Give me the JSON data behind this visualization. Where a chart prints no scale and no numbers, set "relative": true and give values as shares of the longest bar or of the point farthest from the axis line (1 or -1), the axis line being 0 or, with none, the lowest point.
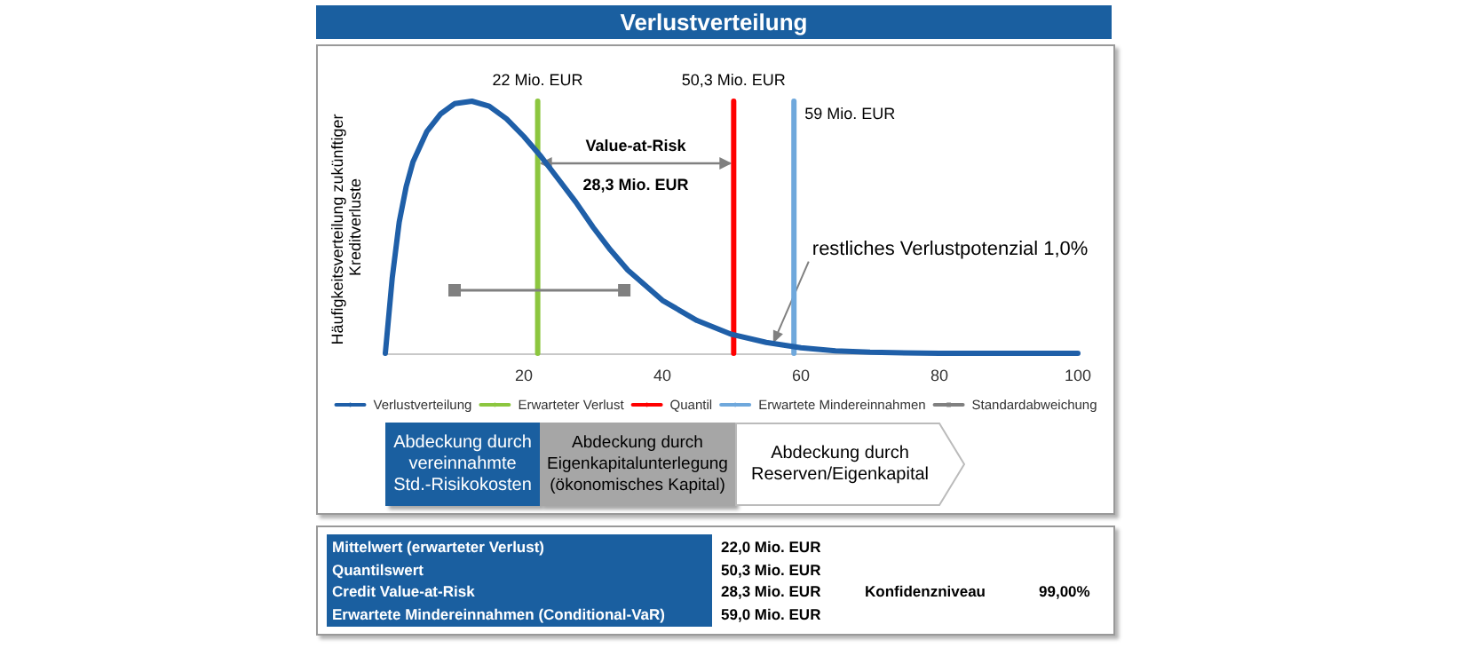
{
  "chart_data": [
    {
      "type": "line",
      "title": "Verlustverteilung",
      "ylabel": "Häufigkeitsverteilung zukünftiger Kreditverluste",
      "relative": true,
      "marker": "none",
      "grid": false,
      "legend": "bottom",
      "xlim": [
        0,
        100
      ],
      "xticks": [
        20,
        40,
        60,
        80,
        100
      ],
      "series": [
        {
          "name": "Verlustverteilung",
          "color": "#1f5fa8",
          "x": [
            0,
            1,
            2,
            3,
            4,
            6,
            8,
            10,
            12.5,
            15,
            17.5,
            20,
            22.5,
            25,
            27.5,
            30,
            32.5,
            35,
            40,
            45,
            50,
            55,
            60,
            65,
            70,
            80,
            90,
            100
          ],
          "values": [
            0,
            0.3,
            0.52,
            0.66,
            0.76,
            0.88,
            0.95,
            0.99,
            1,
            0.98,
            0.93,
            0.86,
            0.78,
            0.69,
            0.6,
            0.5,
            0.41,
            0.33,
            0.21,
            0.13,
            0.075,
            0.043,
            0.022,
            0.01,
            0.004,
            0,
            0,
            0
          ]
        },
        {
          "name": "Erwarteter Verlust",
          "color": "#8cc63f",
          "x": [
            22,
            22
          ],
          "values": [
            0,
            1
          ]
        },
        {
          "name": "Quantil",
          "color": "#ff0000",
          "x": [
            50.3,
            50.3
          ],
          "values": [
            0,
            1
          ]
        },
        {
          "name": "Erwartete Mindereinnahmen",
          "color": "#6fa8dc",
          "x": [
            59,
            59
          ],
          "values": [
            0,
            1
          ]
        },
        {
          "name": "Standardabweichung",
          "color": "#808080",
          "marker": "square",
          "x": [
            10,
            34.5
          ],
          "values": [
            0.25,
            0.25
          ]
        }
      ],
      "annotations": [
        {
          "text": "22 Mio. EUR",
          "x": 22,
          "y": 1
        },
        {
          "text": "50,3 Mio. EUR",
          "x": 50.3,
          "y": 1
        },
        {
          "text": "59 Mio. EUR",
          "x": 59,
          "y": 1
        },
        {
          "text": "restliches Verlustpotenzial 1,0%",
          "x": 56,
          "y": 0.04
        },
        "Value-at-Risk",
        "28,3 Mio. EUR",
        "Abdeckung durch vereinnahmte Std.-Risikokosten",
        "Abdeckung durch Eigenkapitalunterlegung (ökonomisches Kapital)",
        "Abdeckung durch Reserven/Eigenkapital"
      ]
    },
    {
      "type": "other",
      "annotations": [
        "Mittelwert (erwarteter Verlust)",
        "22,0 Mio. EUR",
        "Quantilswert",
        "50,3 Mio. EUR",
        "Credit Value-at-Risk",
        "28,3 Mio. EUR",
        "Konfidenzniveau",
        "99,00%",
        "Erwartete Mindereinnahmen (Conditional-VaR)",
        "59,0 Mio. EUR"
      ]
    }
  ]
}
